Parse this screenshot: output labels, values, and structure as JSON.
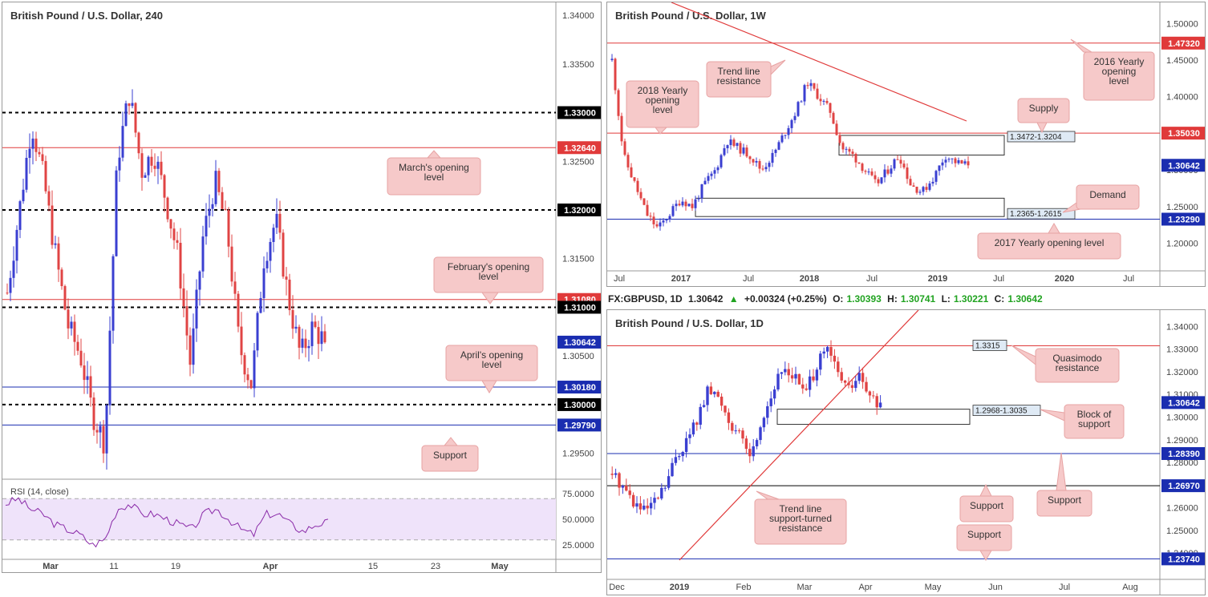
{
  "colors": {
    "bull": "#3a3fd1",
    "bear": "#e04444",
    "redline": "#e03a3a",
    "blueline": "#1a2db0",
    "black": "#000000",
    "rsi": "#8a2aa8",
    "rsi_band": "#efe3fa"
  },
  "left": {
    "title": "British Pound / U.S. Dollar, 240",
    "price_ticks": [
      "1.34000",
      "1.33500",
      "1.33000",
      "1.32500",
      "1.32000",
      "1.31500",
      "1.31000",
      "1.30500",
      "1.30000",
      "1.29500"
    ],
    "time_ticks": [
      "Mar",
      "11",
      "19",
      "Apr",
      "15",
      "23",
      "May"
    ],
    "tags": [
      {
        "label": "1.33000",
        "kind": "black"
      },
      {
        "label": "1.32640",
        "kind": "red"
      },
      {
        "label": "1.32000",
        "kind": "black"
      },
      {
        "label": "1.31080",
        "kind": "red"
      },
      {
        "label": "1.31000",
        "kind": "black"
      },
      {
        "label": "1.30642",
        "kind": "blue"
      },
      {
        "label": "1.30180",
        "kind": "blue"
      },
      {
        "label": "1.30000",
        "kind": "black"
      },
      {
        "label": "1.29790",
        "kind": "blue"
      }
    ],
    "callouts": [
      "March's opening level",
      "February's opening level",
      "April's opening level",
      "Support"
    ],
    "rsi_label": "RSI (14, close)",
    "rsi_ticks": [
      "75.0000",
      "50.0000",
      "25.0000"
    ]
  },
  "topright": {
    "title": "British Pound / U.S. Dollar, 1W",
    "price_ticks": [
      "1.50000",
      "1.45000",
      "1.40000",
      "1.35000",
      "1.30000",
      "1.25000",
      "1.20000"
    ],
    "time_ticks": [
      "Jul",
      "2017",
      "Jul",
      "2018",
      "Jul",
      "2019",
      "Jul",
      "2020",
      "Jul"
    ],
    "tags": [
      {
        "label": "1.47320",
        "kind": "red"
      },
      {
        "label": "1.35030",
        "kind": "red"
      },
      {
        "label": "1.30642",
        "kind": "blue"
      },
      {
        "label": "1.23290",
        "kind": "blue"
      }
    ],
    "callouts": [
      "Trend line resistance",
      "2018 Yearly opening level",
      "2016 Yearly opening level",
      "Supply",
      "Demand",
      "2017 Yearly opening level"
    ],
    "zones": [
      "1.3472-1.3204",
      "1.2365-1.2615"
    ]
  },
  "bottomright": {
    "ohlc": {
      "symbol": "FX:GBPUSD, 1D",
      "last": "1.30642",
      "change": "+0.00324 (+0.25%)",
      "o_label": "O:",
      "o": "1.30393",
      "h_label": "H:",
      "h": "1.30741",
      "l_label": "L:",
      "l": "1.30221",
      "c_label": "C:",
      "c": "1.30642"
    },
    "title": "British Pound / U.S. Dollar, 1D",
    "price_ticks": [
      "1.34000",
      "1.33000",
      "1.32000",
      "1.31000",
      "1.30000",
      "1.29000",
      "1.28000",
      "1.27000",
      "1.26000",
      "1.25000",
      "1.24000"
    ],
    "time_ticks": [
      "Dec",
      "2019",
      "Feb",
      "Mar",
      "Apr",
      "May",
      "Jun",
      "Jul",
      "Aug"
    ],
    "tags": [
      {
        "label": "1.30642",
        "kind": "blue"
      },
      {
        "label": "1.28390",
        "kind": "blue"
      },
      {
        "label": "1.26970",
        "kind": "blue"
      },
      {
        "label": "1.23740",
        "kind": "blue"
      }
    ],
    "callouts": [
      "Quasimodo resistance",
      "Block of support",
      "Trend line support-turned resistance",
      "Support",
      "Support",
      "Support"
    ],
    "zones": [
      "1.3315",
      "1.2968-1.3035"
    ]
  },
  "chart_data": [
    {
      "type": "line",
      "title": "British Pound / U.S. Dollar, 240",
      "ylim": [
        1.2925,
        1.3405
      ],
      "levels": [
        1.33,
        1.3264,
        1.32,
        1.3108,
        1.31,
        1.3018,
        1.3,
        1.2979
      ],
      "last_price": 1.30642,
      "approx_closes": [
        1.3115,
        1.32,
        1.329,
        1.323,
        1.315,
        1.308,
        1.305,
        1.299,
        1.296,
        1.325,
        1.332,
        1.324,
        1.326,
        1.321,
        1.315,
        1.304,
        1.317,
        1.323,
        1.318,
        1.306,
        1.302,
        1.315,
        1.319,
        1.311,
        1.305,
        1.308,
        1.3064
      ],
      "rsi_ylim": [
        15,
        85
      ],
      "rsi_approx": [
        65,
        70,
        60,
        55,
        45,
        40,
        35,
        25,
        30,
        60,
        65,
        55,
        55,
        50,
        45,
        40,
        55,
        60,
        50,
        40,
        35,
        55,
        55,
        45,
        38,
        45,
        47
      ]
    },
    {
      "type": "line",
      "title": "British Pound / U.S. Dollar, 1W",
      "ylim": [
        1.17,
        1.52
      ],
      "levels": [
        1.4732,
        1.3503,
        1.2329
      ],
      "zones": [
        [
          1.3204,
          1.3472
        ],
        [
          1.2365,
          1.2615
        ]
      ],
      "last_price": 1.30642,
      "approx_closes": [
        1.45,
        1.32,
        1.28,
        1.24,
        1.22,
        1.24,
        1.26,
        1.25,
        1.28,
        1.3,
        1.34,
        1.33,
        1.32,
        1.3,
        1.32,
        1.35,
        1.38,
        1.42,
        1.4,
        1.38,
        1.33,
        1.32,
        1.3,
        1.28,
        1.3,
        1.32,
        1.28,
        1.27,
        1.29,
        1.32,
        1.31,
        1.3064
      ]
    },
    {
      "type": "line",
      "title": "British Pound / U.S. Dollar, 1D",
      "ylim": [
        1.234,
        1.343
      ],
      "levels": [
        1.3315,
        1.2839,
        1.2697,
        1.2374
      ],
      "zones": [
        [
          1.2968,
          1.3035
        ]
      ],
      "last_price": 1.30642,
      "approx_closes": [
        1.275,
        1.27,
        1.262,
        1.258,
        1.262,
        1.27,
        1.283,
        1.29,
        1.3,
        1.312,
        1.308,
        1.298,
        1.29,
        1.283,
        1.3,
        1.312,
        1.322,
        1.318,
        1.31,
        1.322,
        1.33,
        1.32,
        1.312,
        1.318,
        1.308,
        1.3064
      ]
    }
  ]
}
